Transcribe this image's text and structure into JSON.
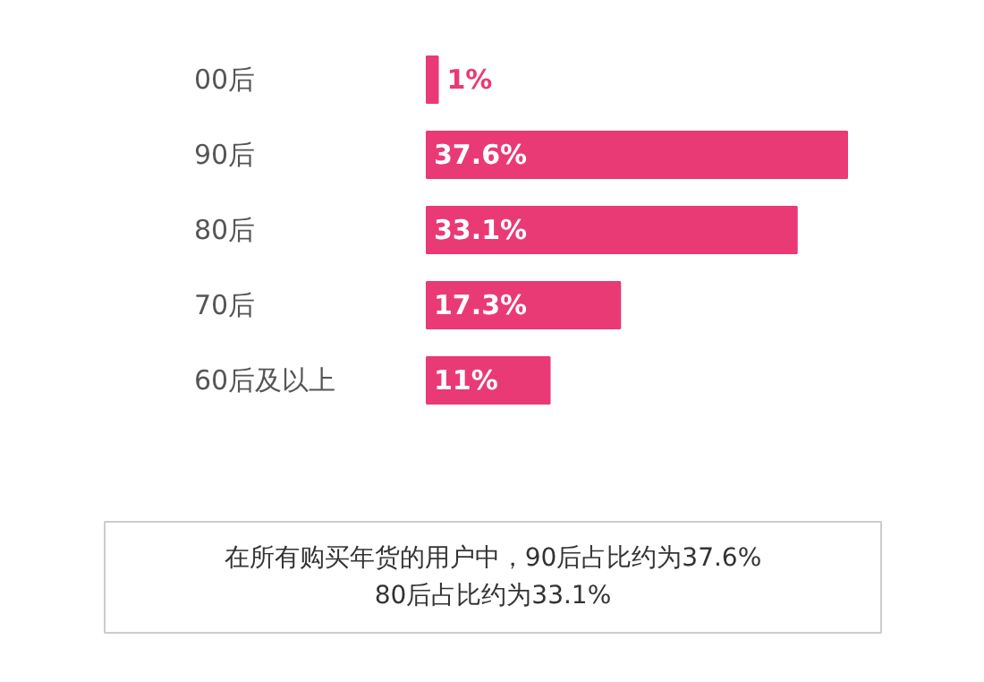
{
  "chart_data": {
    "type": "bar",
    "orientation": "horizontal",
    "categories": [
      "00后",
      "90后",
      "80后",
      "70后",
      "60后及以上"
    ],
    "values": [
      1,
      37.6,
      33.1,
      17.3,
      11
    ],
    "value_labels": [
      "1%",
      "37.6%",
      "33.1%",
      "17.3%",
      "11%"
    ],
    "color": "#e93a76",
    "annotations": [
      "在所有购买年货的用户中，90后占比约为37.6%\n80后占比约为33.1%"
    ]
  }
}
